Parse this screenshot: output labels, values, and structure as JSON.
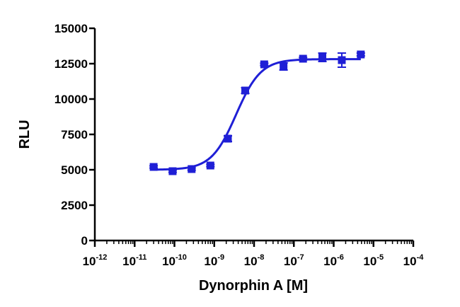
{
  "chart_data": {
    "type": "scatter",
    "xlabel": "Dynorphin A [M]",
    "ylabel": "RLU",
    "xscale": "log",
    "xlim": [
      1e-12,
      0.0001
    ],
    "ylim": [
      0,
      15000
    ],
    "x_ticks": [
      {
        "base": "10",
        "exp": "-12",
        "value": 1e-12
      },
      {
        "base": "10",
        "exp": "-11",
        "value": 1e-11
      },
      {
        "base": "10",
        "exp": "-10",
        "value": 1e-10
      },
      {
        "base": "10",
        "exp": "-9",
        "value": 1e-09
      },
      {
        "base": "10",
        "exp": "-8",
        "value": 1e-08
      },
      {
        "base": "10",
        "exp": "-7",
        "value": 1e-07
      },
      {
        "base": "10",
        "exp": "-6",
        "value": 1e-06
      },
      {
        "base": "10",
        "exp": "-5",
        "value": 1e-05
      },
      {
        "base": "10",
        "exp": "-4",
        "value": 0.0001
      }
    ],
    "y_ticks": [
      {
        "label": "0",
        "value": 0
      },
      {
        "label": "2500",
        "value": 2500
      },
      {
        "label": "5000",
        "value": 5000
      },
      {
        "label": "7500",
        "value": 7500
      },
      {
        "label": "10000",
        "value": 10000
      },
      {
        "label": "12500",
        "value": 12500
      },
      {
        "label": "15000",
        "value": 15000
      }
    ],
    "grid": false,
    "color": "#1f1fd6",
    "points": [
      {
        "x": 3e-11,
        "y": 5200,
        "err": 80
      },
      {
        "x": 9e-11,
        "y": 4900,
        "err": 80
      },
      {
        "x": 2.7e-10,
        "y": 5050,
        "err": 80
      },
      {
        "x": 8e-10,
        "y": 5300,
        "err": 80
      },
      {
        "x": 2.2e-09,
        "y": 7200,
        "err": 200
      },
      {
        "x": 6e-09,
        "y": 10600,
        "err": 200
      },
      {
        "x": 1.8e-08,
        "y": 12450,
        "err": 80
      },
      {
        "x": 5.5e-08,
        "y": 12300,
        "err": 250
      },
      {
        "x": 1.7e-07,
        "y": 12850,
        "err": 80
      },
      {
        "x": 5.2e-07,
        "y": 12950,
        "err": 300
      },
      {
        "x": 1.6e-06,
        "y": 12750,
        "err": 500
      },
      {
        "x": 4.8e-06,
        "y": 13150,
        "err": 100
      }
    ],
    "fit": {
      "model": "sigmoidal dose-response",
      "bottom": 5000,
      "top": 12820,
      "log_ec50": -8.45,
      "hill": 1.4
    }
  }
}
